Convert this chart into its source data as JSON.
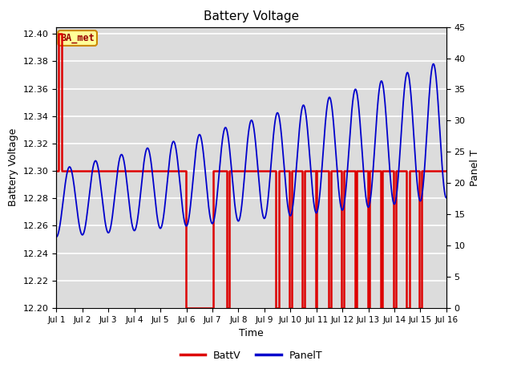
{
  "title": "Battery Voltage",
  "xlabel": "Time",
  "ylabel_left": "Battery Voltage",
  "ylabel_right": "Panel T",
  "annotation_text": "BA_met",
  "xlim": [
    0,
    15
  ],
  "ylim_left": [
    12.2,
    12.405
  ],
  "ylim_right": [
    0,
    45
  ],
  "xtick_labels": [
    "Jul 1",
    "Jul 2",
    "Jul 3",
    "Jul 4",
    "Jul 5",
    "Jul 6",
    "Jul 7",
    "Jul 8",
    "Jul 9",
    "Jul 10",
    "Jul 11",
    "Jul 12",
    "Jul 13",
    "Jul 14",
    "Jul 15",
    "Jul 16"
  ],
  "xtick_positions": [
    0,
    1,
    2,
    3,
    4,
    5,
    6,
    7,
    8,
    9,
    10,
    11,
    12,
    13,
    14,
    15
  ],
  "ytick_left": [
    12.2,
    12.22,
    12.24,
    12.26,
    12.28,
    12.3,
    12.32,
    12.34,
    12.36,
    12.38,
    12.4
  ],
  "ytick_right": [
    0,
    5,
    10,
    15,
    20,
    25,
    30,
    35,
    40,
    45
  ],
  "plot_bg_color": "#dcdcdc",
  "grid_color": "#ffffff",
  "batt_color": "#dd0000",
  "panel_color": "#0000cc",
  "legend_batt": "BattV",
  "legend_panel": "PanelT",
  "batt_x": [
    0,
    0.07,
    0.07,
    0.2,
    0.2,
    4.98,
    4.98,
    6.02,
    6.02,
    6.55,
    6.55,
    6.65,
    6.65,
    8.45,
    8.45,
    8.55,
    8.55,
    8.95,
    8.95,
    9.05,
    9.05,
    9.45,
    9.45,
    9.55,
    9.55,
    9.98,
    9.98,
    10.02,
    10.02,
    10.48,
    10.48,
    10.55,
    10.55,
    10.98,
    10.98,
    11.05,
    11.05,
    11.48,
    11.48,
    11.55,
    11.55,
    11.98,
    11.98,
    12.05,
    12.05,
    12.48,
    12.48,
    12.55,
    12.55,
    12.98,
    12.98,
    13.05,
    13.05,
    13.45,
    13.45,
    13.6,
    13.6,
    13.95,
    13.95,
    14.05,
    14.05,
    15.0
  ],
  "batt_y": [
    12.3,
    12.3,
    12.4,
    12.4,
    12.3,
    12.3,
    12.2,
    12.2,
    12.3,
    12.3,
    12.2,
    12.2,
    12.3,
    12.3,
    12.2,
    12.2,
    12.3,
    12.3,
    12.2,
    12.2,
    12.3,
    12.3,
    12.2,
    12.2,
    12.3,
    12.3,
    12.2,
    12.2,
    12.3,
    12.3,
    12.2,
    12.2,
    12.3,
    12.3,
    12.2,
    12.2,
    12.3,
    12.3,
    12.2,
    12.2,
    12.3,
    12.3,
    12.2,
    12.2,
    12.3,
    12.3,
    12.2,
    12.2,
    12.3,
    12.3,
    12.2,
    12.2,
    12.3,
    12.3,
    12.2,
    12.2,
    12.3,
    12.3,
    12.2,
    12.2,
    12.3,
    12.3
  ]
}
